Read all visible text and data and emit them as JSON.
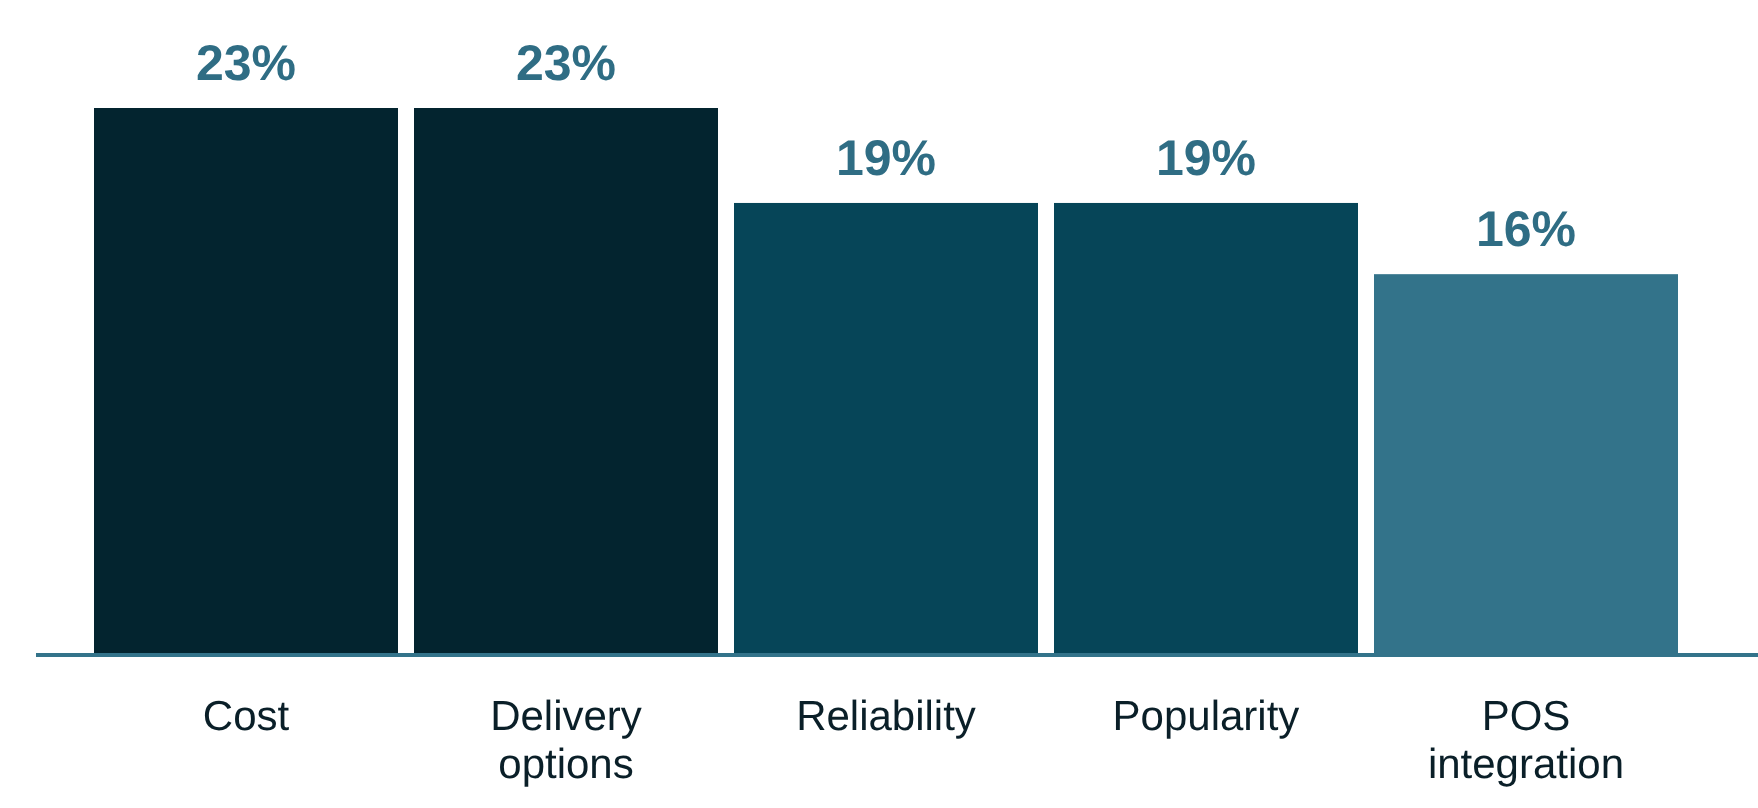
{
  "chart_data": {
    "type": "bar",
    "categories": [
      "Cost",
      "Delivery options",
      "Reliability",
      "Popularity",
      "POS integration"
    ],
    "values": [
      23,
      23,
      19,
      19,
      16
    ],
    "colors": [
      "#03242f",
      "#03242f",
      "#064558",
      "#064558",
      "#33738a"
    ],
    "value_labels": [
      "23%",
      "23%",
      "19%",
      "19%",
      "16%"
    ]
  }
}
